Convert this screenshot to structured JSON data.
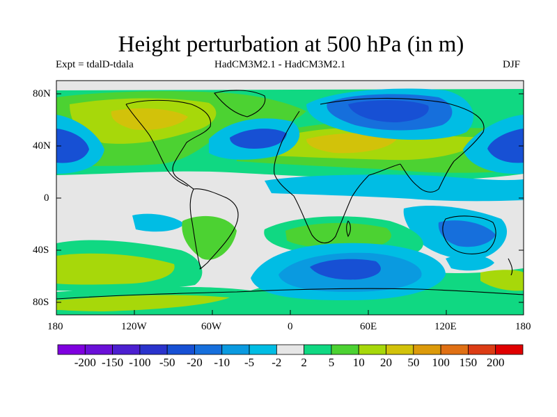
{
  "title": "Height perturbation at 500 hPa (in m)",
  "subtitle_left": "Expt = tdalD-tdala",
  "subtitle_center": "HadCM3M2.1 - HadCM3M2.1",
  "subtitle_right": "DJF",
  "lat_ticks": [
    "80N",
    "40N",
    "0",
    "40S",
    "80S"
  ],
  "lon_ticks": [
    "180",
    "120W",
    "60W",
    "0",
    "60E",
    "120E",
    "180"
  ],
  "colorbar": {
    "colors": [
      "#7f00df",
      "#6a10d8",
      "#4c1fd0",
      "#2a33cc",
      "#1750d4",
      "#166fdc",
      "#0a9ae0",
      "#00bde4",
      "#e6e6e6",
      "#10d882",
      "#4cd232",
      "#a7d80a",
      "#d2c20a",
      "#dc9a0a",
      "#e07014",
      "#dc3c14",
      "#e00000"
    ],
    "labels": [
      "-200",
      "-150",
      "-100",
      "-50",
      "-20",
      "-10",
      "-5",
      "-2",
      "2",
      "5",
      "10",
      "20",
      "50",
      "100",
      "150",
      "200"
    ]
  },
  "map_colors": {
    "background": "#e6e6e6",
    "neg_light": "#00bde4",
    "neg_mid": "#0a9ae0",
    "neg_strong": "#166fdc",
    "neg_deep": "#1750d4",
    "pos_light": "#10d882",
    "pos_mid": "#4cd232",
    "pos_strong": "#a7d80a",
    "pos_deep": "#d2c20a"
  }
}
